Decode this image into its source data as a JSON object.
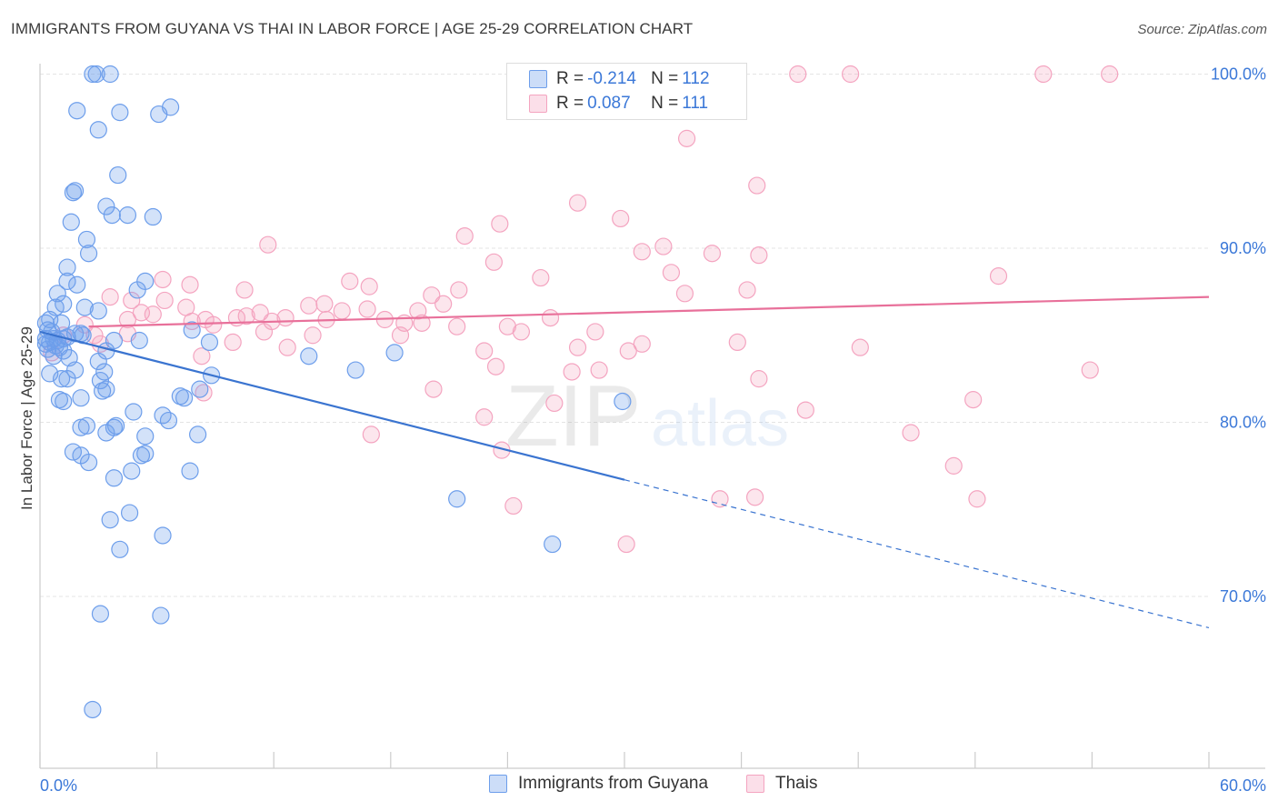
{
  "title": "IMMIGRANTS FROM GUYANA VS THAI IN LABOR FORCE | AGE 25-29 CORRELATION CHART",
  "source": "Source: ZipAtlas.com",
  "watermark": {
    "part1": "ZIP",
    "part2": "atlas"
  },
  "legend_stats": [
    {
      "r_label": "R =",
      "r_value": "-0.214",
      "n_label": "N =",
      "n_value": "112",
      "color": "#6d9eeb"
    },
    {
      "r_label": "R =",
      "r_value": "0.087",
      "n_label": "N =",
      "n_value": "111",
      "color": "#f4a4c0"
    }
  ],
  "colors": {
    "blue": "#6d9eeb",
    "blue_line": "#3a74d0",
    "pink": "#f4a4c0",
    "pink_line": "#e8709a",
    "tick_label": "#3b78d8"
  },
  "chart_data": {
    "type": "scatter",
    "ylabel": "In Labor Force | Age 25-29",
    "xlabel": "",
    "xlim": [
      0,
      60
    ],
    "ylim": [
      61,
      100
    ],
    "x_tick_labels": [
      {
        "value": 0,
        "label": "0.0%"
      },
      {
        "value": 60,
        "label": "60.0%"
      }
    ],
    "y_tick_labels": [
      {
        "value": 70,
        "label": "70.0%"
      },
      {
        "value": 80,
        "label": "80.0%"
      },
      {
        "value": 90,
        "label": "90.0%"
      },
      {
        "value": 100,
        "label": "100.0%"
      }
    ],
    "grid": true,
    "legend_position": "bottom-center",
    "series": [
      {
        "name": "Immigrants from Guyana",
        "color": "#6d9eeb",
        "trend": {
          "x1": 0,
          "y1": 85.2,
          "x2": 30,
          "y2": 76.7,
          "dash_to_x": 60,
          "dash_to_y": 68.2
        },
        "points": [
          [
            2.7,
            100
          ],
          [
            3.6,
            100
          ],
          [
            2.9,
            100
          ],
          [
            1.9,
            97.9
          ],
          [
            4.1,
            97.8
          ],
          [
            6.1,
            97.7
          ],
          [
            6.7,
            98.1
          ],
          [
            3.0,
            96.8
          ],
          [
            4.0,
            94.2
          ],
          [
            1.8,
            93.3
          ],
          [
            1.7,
            93.2
          ],
          [
            3.4,
            92.4
          ],
          [
            3.7,
            91.9
          ],
          [
            4.5,
            91.9
          ],
          [
            5.8,
            91.8
          ],
          [
            1.6,
            91.5
          ],
          [
            2.4,
            90.5
          ],
          [
            2.5,
            89.7
          ],
          [
            1.4,
            88.9
          ],
          [
            5.4,
            88.1
          ],
          [
            1.4,
            88.1
          ],
          [
            1.9,
            87.9
          ],
          [
            5.0,
            87.6
          ],
          [
            0.9,
            87.4
          ],
          [
            1.2,
            86.8
          ],
          [
            0.8,
            86.6
          ],
          [
            2.3,
            86.6
          ],
          [
            3.0,
            86.4
          ],
          [
            0.5,
            85.9
          ],
          [
            0.3,
            85.7
          ],
          [
            1.1,
            85.7
          ],
          [
            7.8,
            85.3
          ],
          [
            0.4,
            85.3
          ],
          [
            0.6,
            85.2
          ],
          [
            1.8,
            85.1
          ],
          [
            2.1,
            85.1
          ],
          [
            2.2,
            85.0
          ],
          [
            1.4,
            84.9
          ],
          [
            0.3,
            84.8
          ],
          [
            0.7,
            84.8
          ],
          [
            1.2,
            84.8
          ],
          [
            0.9,
            84.7
          ],
          [
            0.5,
            84.6
          ],
          [
            3.8,
            84.7
          ],
          [
            5.1,
            84.7
          ],
          [
            8.7,
            84.6
          ],
          [
            0.3,
            84.5
          ],
          [
            0.8,
            84.4
          ],
          [
            1.0,
            84.3
          ],
          [
            0.4,
            84.2
          ],
          [
            1.2,
            84.1
          ],
          [
            3.4,
            84.1
          ],
          [
            13.8,
            83.8
          ],
          [
            18.2,
            84.0
          ],
          [
            0.7,
            83.8
          ],
          [
            1.5,
            83.7
          ],
          [
            3.0,
            83.5
          ],
          [
            1.8,
            83.0
          ],
          [
            16.2,
            83.0
          ],
          [
            3.3,
            82.9
          ],
          [
            0.5,
            82.8
          ],
          [
            8.8,
            82.7
          ],
          [
            1.1,
            82.5
          ],
          [
            1.4,
            82.5
          ],
          [
            3.1,
            82.4
          ],
          [
            8.2,
            81.9
          ],
          [
            3.4,
            81.9
          ],
          [
            3.2,
            81.8
          ],
          [
            2.1,
            81.4
          ],
          [
            1.0,
            81.3
          ],
          [
            7.4,
            81.4
          ],
          [
            7.2,
            81.5
          ],
          [
            29.9,
            81.2
          ],
          [
            1.2,
            81.2
          ],
          [
            4.8,
            80.6
          ],
          [
            6.3,
            80.4
          ],
          [
            6.6,
            80.1
          ],
          [
            2.1,
            79.7
          ],
          [
            2.4,
            79.8
          ],
          [
            3.8,
            79.7
          ],
          [
            3.9,
            79.8
          ],
          [
            3.4,
            79.4
          ],
          [
            8.1,
            79.3
          ],
          [
            5.4,
            79.2
          ],
          [
            1.7,
            78.3
          ],
          [
            5.4,
            78.2
          ],
          [
            5.2,
            78.1
          ],
          [
            2.1,
            78.1
          ],
          [
            2.5,
            77.7
          ],
          [
            7.7,
            77.2
          ],
          [
            4.7,
            77.2
          ],
          [
            3.8,
            76.8
          ],
          [
            21.4,
            75.6
          ],
          [
            4.6,
            74.8
          ],
          [
            3.6,
            74.4
          ],
          [
            6.3,
            73.5
          ],
          [
            26.3,
            73.0
          ],
          [
            4.1,
            72.7
          ],
          [
            3.1,
            69.0
          ],
          [
            6.2,
            68.9
          ],
          [
            2.7,
            63.5
          ]
        ]
      },
      {
        "name": "Thais",
        "color": "#f4a4c0",
        "trend": {
          "x1": 2.5,
          "y1": 85.5,
          "x2": 60,
          "y2": 87.2
        },
        "points": [
          [
            38.9,
            100
          ],
          [
            41.6,
            100
          ],
          [
            51.5,
            100
          ],
          [
            54.9,
            100
          ],
          [
            33.2,
            96.3
          ],
          [
            36.8,
            93.6
          ],
          [
            27.6,
            92.6
          ],
          [
            29.8,
            91.7
          ],
          [
            23.6,
            91.4
          ],
          [
            21.8,
            90.7
          ],
          [
            11.7,
            90.2
          ],
          [
            32.0,
            90.1
          ],
          [
            30.9,
            89.8
          ],
          [
            34.5,
            89.7
          ],
          [
            36.9,
            89.6
          ],
          [
            23.3,
            89.2
          ],
          [
            32.4,
            88.6
          ],
          [
            25.7,
            88.3
          ],
          [
            49.2,
            88.4
          ],
          [
            6.3,
            88.2
          ],
          [
            15.9,
            88.1
          ],
          [
            7.7,
            87.9
          ],
          [
            16.9,
            87.8
          ],
          [
            10.5,
            87.6
          ],
          [
            36.3,
            87.6
          ],
          [
            21.5,
            87.6
          ],
          [
            33.1,
            87.4
          ],
          [
            3.6,
            87.2
          ],
          [
            20.1,
            87.3
          ],
          [
            6.4,
            87.0
          ],
          [
            4.7,
            87.0
          ],
          [
            14.6,
            86.8
          ],
          [
            20.7,
            86.8
          ],
          [
            13.8,
            86.7
          ],
          [
            7.5,
            86.6
          ],
          [
            16.8,
            86.5
          ],
          [
            15.5,
            86.4
          ],
          [
            19.4,
            86.4
          ],
          [
            11.3,
            86.3
          ],
          [
            5.2,
            86.3
          ],
          [
            5.8,
            86.2
          ],
          [
            10.6,
            86.1
          ],
          [
            10.1,
            86.0
          ],
          [
            12.6,
            86.0
          ],
          [
            4.5,
            85.9
          ],
          [
            26.2,
            86.0
          ],
          [
            8.5,
            85.9
          ],
          [
            14.7,
            85.9
          ],
          [
            17.7,
            85.9
          ],
          [
            11.9,
            85.8
          ],
          [
            7.8,
            85.8
          ],
          [
            19.6,
            85.7
          ],
          [
            8.9,
            85.6
          ],
          [
            18.7,
            85.7
          ],
          [
            2.3,
            85.6
          ],
          [
            21.4,
            85.5
          ],
          [
            24.0,
            85.5
          ],
          [
            24.7,
            85.2
          ],
          [
            11.5,
            85.2
          ],
          [
            28.5,
            85.2
          ],
          [
            4.5,
            85.1
          ],
          [
            2.8,
            85.0
          ],
          [
            14.0,
            85.0
          ],
          [
            1.2,
            85.0
          ],
          [
            18.5,
            85.0
          ],
          [
            35.8,
            84.6
          ],
          [
            9.9,
            84.6
          ],
          [
            3.1,
            84.5
          ],
          [
            30.9,
            84.5
          ],
          [
            42.1,
            84.3
          ],
          [
            27.6,
            84.3
          ],
          [
            12.7,
            84.3
          ],
          [
            22.8,
            84.1
          ],
          [
            30.2,
            84.1
          ],
          [
            0.6,
            84.0
          ],
          [
            8.3,
            83.8
          ],
          [
            23.4,
            83.2
          ],
          [
            28.7,
            83.0
          ],
          [
            53.9,
            83.0
          ],
          [
            27.3,
            82.9
          ],
          [
            36.9,
            82.5
          ],
          [
            20.2,
            81.9
          ],
          [
            8.4,
            81.7
          ],
          [
            47.9,
            81.3
          ],
          [
            26.4,
            81.1
          ],
          [
            39.3,
            80.7
          ],
          [
            22.8,
            80.3
          ],
          [
            44.7,
            79.4
          ],
          [
            17.0,
            79.3
          ],
          [
            23.7,
            78.4
          ],
          [
            46.9,
            77.5
          ],
          [
            36.7,
            75.7
          ],
          [
            34.9,
            75.6
          ],
          [
            48.1,
            75.6
          ],
          [
            24.3,
            75.2
          ],
          [
            30.1,
            73.0
          ]
        ]
      }
    ]
  }
}
